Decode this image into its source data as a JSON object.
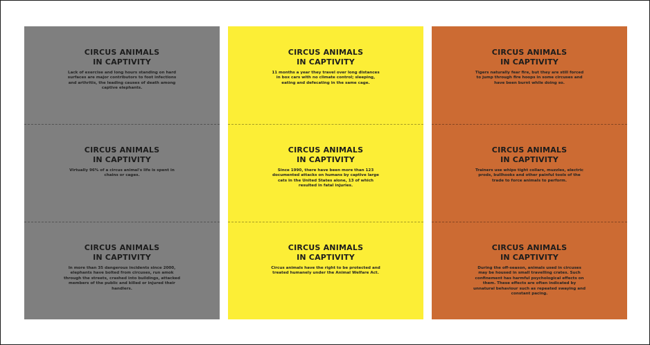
{
  "card_title_line1": "CIRCUS ANIMALS",
  "card_title_line2": "IN CAPTIVITY",
  "colors": {
    "gray": "#7f7f7f",
    "yellow": "#fcee36",
    "orange": "#cc6b33"
  },
  "columns": [
    {
      "color": "gray",
      "cards": [
        {
          "body": "Lack of exercise and long hours standing on hard surfaces are major contributors to foot infections and arthritis, the leading causes of death among captive elephants."
        },
        {
          "body": "Virtually 96% of a circus animal's life is spent in chains or cages."
        },
        {
          "body": "In more than 35 dangerous incidents since 2000, elephants have bolted from circuses, run amok through the streets, crashed into buildings, attacked members of the public and killed or injured their handlers."
        }
      ]
    },
    {
      "color": "yellow",
      "cards": [
        {
          "body": "11 months a year they travel over long distances in box cars with no climate control; sleeping, eating and defecating in the same cage."
        },
        {
          "body": "Since 1990, there have been more than 123 documented attacks on humans by captive large cats in the United States alone, 13 of which resulted in fatal injuries."
        },
        {
          "body": "Circus animals have the right to be protected and treated humanely under the Animal Welfare Act."
        }
      ]
    },
    {
      "color": "orange",
      "cards": [
        {
          "body": "Tigers naturally fear fire, but they are still forced to jump through fire hoops in some circuses and have been burnt while doing so."
        },
        {
          "body": "Trainers use whips tight collars, muzzles, electric prods, bullhooks and other painful tools of the trade to force animals to perform."
        },
        {
          "body": "During the off-season, animals used in circuses may be housed in small travelling crates. Such confinement has harmful psychological effects on them. These effects are often indicated by unnatural behaviour such as repeated swaying and constant pacing."
        }
      ]
    }
  ]
}
